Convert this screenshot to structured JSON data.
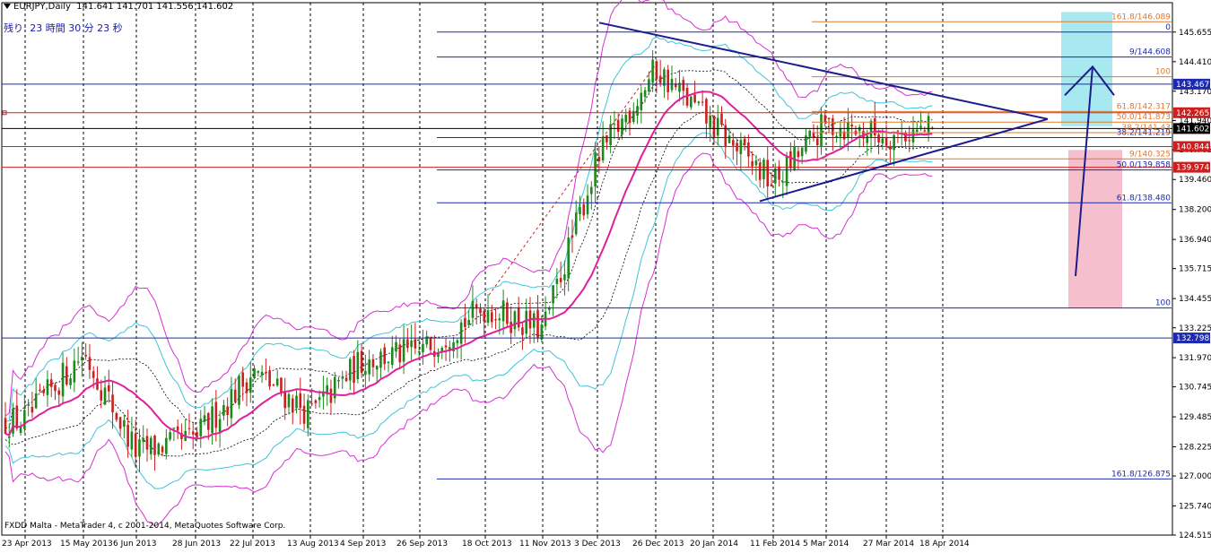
{
  "header": {
    "symbol": "EURJPY,Daily",
    "ohlc": "141.641 141.701 141.556 141.602"
  },
  "countdown": "残り: 23 時間 30 分 23 秒",
  "copyright": "FXDD Malta - MetaTrader 4, c 2001-2014, MetaQuotes Software Corp.",
  "colors": {
    "bull_candle": "#1b8a1b",
    "bear_candle": "#cc1f1f",
    "ma_line": "#e0209a",
    "bb3": "#d531d2",
    "bb2": "#40c4d8",
    "bb1": "#000000",
    "trendline": "#1c1c8c",
    "hline_blue": "#1c2ab0",
    "hline_red": "#cc2020",
    "fibo_orange": "#e07830",
    "tp_zone": "#9ee6ee",
    "sl_zone": "#f5b8c8"
  },
  "chart_data": {
    "type": "candlestick",
    "title": "EURJPY,Daily",
    "symbol": "EURJPY",
    "timeframe": "Daily",
    "last_bar": {
      "open": 141.641,
      "high": 141.701,
      "low": 141.556,
      "close": 141.602
    },
    "ylim": [
      124.515,
      146.89
    ],
    "y_ticks": [
      145.655,
      144.41,
      143.17,
      141.94,
      140.705,
      139.46,
      138.2,
      136.94,
      135.715,
      134.455,
      133.225,
      131.97,
      130.745,
      129.485,
      128.225,
      127.0,
      125.74,
      124.515
    ],
    "x_tick_labels": [
      "23 Apr 2013",
      "15 May 2013",
      "6 Jun 2013",
      "28 Jun 2013",
      "22 Jul 2013",
      "13 Aug 2013",
      "4 Sep 2013",
      "26 Sep 2013",
      "18 Oct 2013",
      "11 Nov 2013",
      "3 Dec 2013",
      "26 Dec 2013",
      "20 Jan 2014",
      "11 Feb 2014",
      "5 Mar 2014",
      "27 Mar 2014",
      "18 Apr 2014"
    ],
    "price_anchors": [
      [
        "23 Apr 2013",
        129.3
      ],
      [
        "15 May 2013",
        132.2
      ],
      [
        "6 Jun 2013",
        128.0
      ],
      [
        "28 Jun 2013",
        128.6
      ],
      [
        "22 Jul 2013",
        131.4
      ],
      [
        "13 Aug 2013",
        129.6
      ],
      [
        "4 Sep 2013",
        131.9
      ],
      [
        "26 Sep 2013",
        132.2
      ],
      [
        "18 Oct 2013",
        134.1
      ],
      [
        "11 Nov 2013",
        133.1
      ],
      [
        "3 Dec 2013",
        140.3
      ],
      [
        "26 Dec 2013",
        144.1
      ],
      [
        "20 Jan 2014",
        141.7
      ],
      [
        "11 Feb 2014",
        139.3
      ],
      [
        "5 Mar 2014",
        141.8
      ],
      [
        "27 Mar 2014",
        141.3
      ],
      [
        "18 Apr 2014",
        141.602
      ]
    ],
    "horizontal_levels": [
      {
        "price": 143.467,
        "label": "143.467",
        "color": "blue"
      },
      {
        "price": 142.265,
        "label": "142.265",
        "color": "red"
      },
      {
        "price": 141.602,
        "label": "141.602",
        "color": "black"
      },
      {
        "price": 140.844,
        "label": "140.844",
        "color": "red"
      },
      {
        "price": 139.974,
        "label": "139.974",
        "color": "red"
      },
      {
        "price": 132.798,
        "label": "132.798",
        "color": "blue"
      }
    ],
    "fibonacci_blue": [
      {
        "price": 145.655,
        "label": "0"
      },
      {
        "price": 144.608,
        "label": "9/144.608"
      },
      {
        "price": 141.219,
        "label": "38.2/141.219"
      },
      {
        "price": 139.858,
        "label": "50.0/139.858"
      },
      {
        "price": 138.48,
        "label": "61.8/138.480"
      },
      {
        "price": 134.06,
        "label": "100"
      },
      {
        "price": 126.875,
        "label": "161.8/126.875"
      }
    ],
    "fibonacci_orange": [
      {
        "price": 146.089,
        "label": "161.8/146.089"
      },
      {
        "price": 143.78,
        "label": "100"
      },
      {
        "price": 142.317,
        "label": "61.8/142.317"
      },
      {
        "price": 141.873,
        "label": "50.0/141.873"
      },
      {
        "price": 141.43,
        "label": "38.2/141.43"
      },
      {
        "price": 140.325,
        "label": "9/140.325"
      }
    ],
    "indicators": [
      "Moving Average",
      "Bollinger Bands (1σ, 2σ, 3σ)"
    ],
    "annotations": [
      "Symmetrical triangle (descending upper trendline, ascending lower trendline)",
      "Projected upward arrow",
      "Take-profit zone (cyan)",
      "Stop zone (pink)"
    ]
  }
}
